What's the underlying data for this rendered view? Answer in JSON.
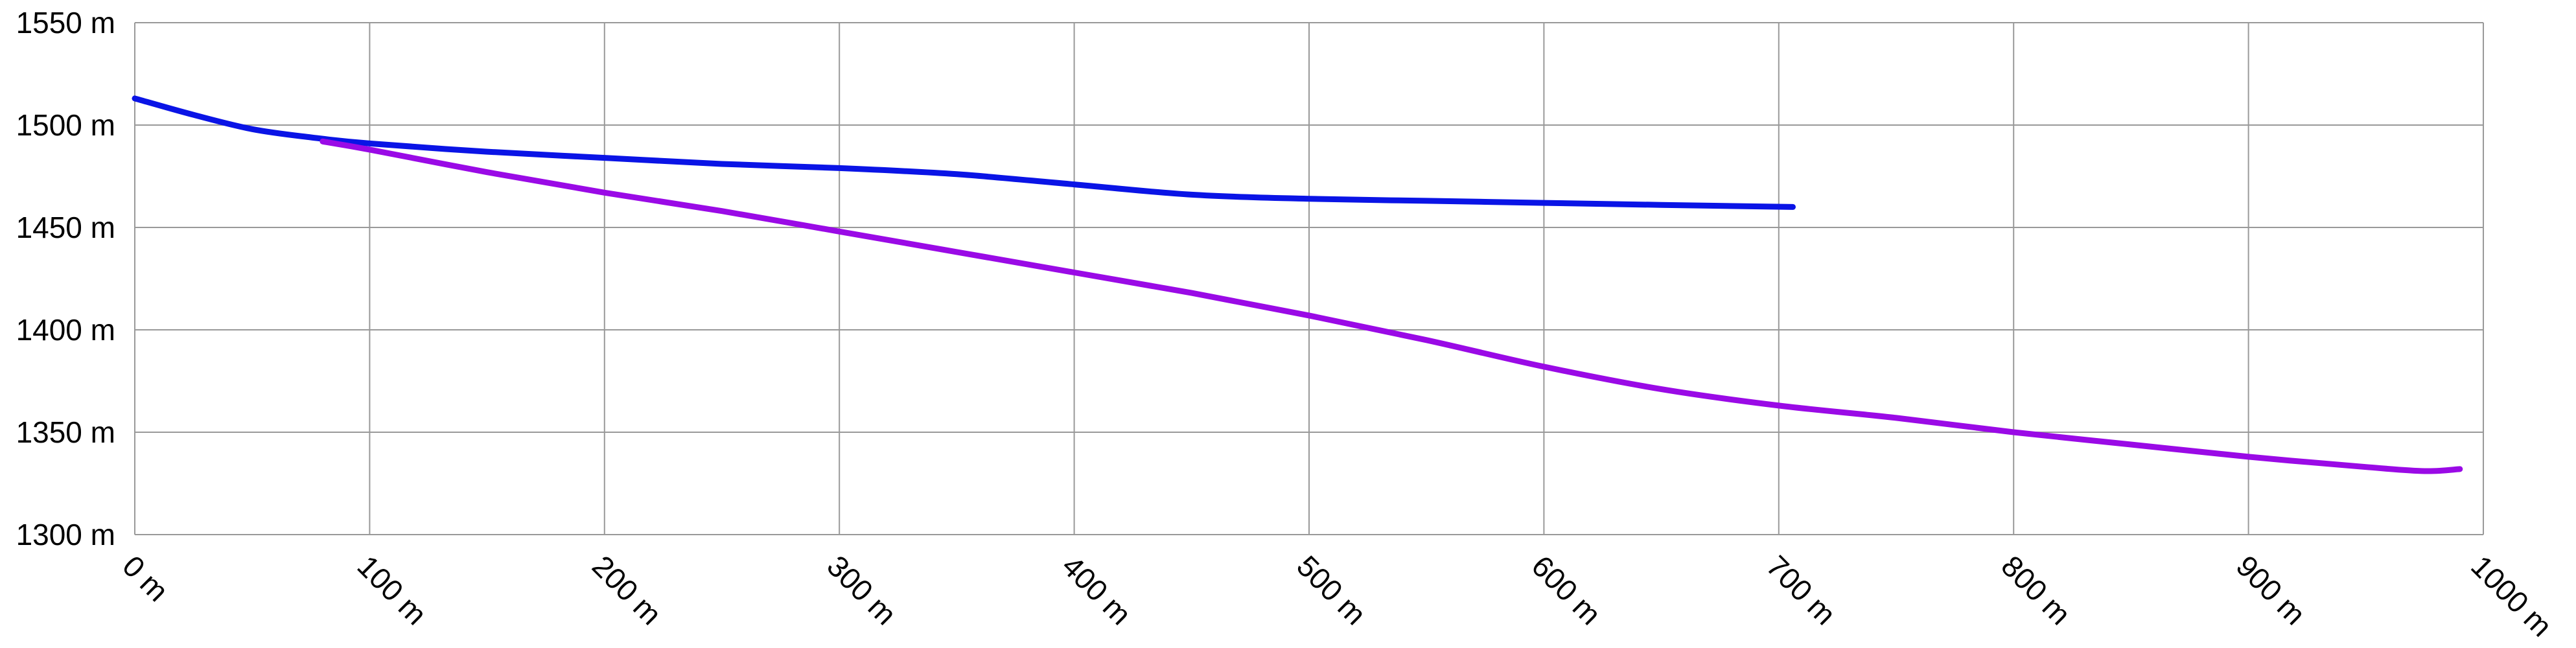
{
  "chart_data": {
    "type": "line",
    "title": "",
    "xlabel": "",
    "ylabel": "",
    "xlim": [
      0,
      1000
    ],
    "ylim": [
      1300,
      1550
    ],
    "grid": true,
    "legend": "none",
    "x_ticks": [
      0,
      100,
      200,
      300,
      400,
      500,
      600,
      700,
      800,
      900,
      1000
    ],
    "x_tick_labels": [
      "0 m",
      "100 m",
      "200 m",
      "300 m",
      "400 m",
      "500 m",
      "600 m",
      "700 m",
      "800 m",
      "900 m",
      "1000 m"
    ],
    "y_ticks": [
      1300,
      1350,
      1400,
      1450,
      1500,
      1550
    ],
    "y_tick_labels": [
      "1300 m",
      "1350 m",
      "1400 m",
      "1450 m",
      "1500 m",
      "1550 m"
    ],
    "series": [
      {
        "color": "#0a14e6",
        "points": [
          [
            0,
            1513
          ],
          [
            25,
            1505
          ],
          [
            50,
            1498
          ],
          [
            75,
            1494
          ],
          [
            100,
            1491
          ],
          [
            150,
            1487
          ],
          [
            200,
            1484
          ],
          [
            250,
            1481
          ],
          [
            300,
            1479
          ],
          [
            350,
            1476
          ],
          [
            400,
            1471
          ],
          [
            450,
            1466
          ],
          [
            500,
            1464
          ],
          [
            550,
            1463
          ],
          [
            600,
            1462
          ],
          [
            650,
            1461
          ],
          [
            706,
            1460
          ]
        ]
      },
      {
        "color": "#9a0ae6",
        "points": [
          [
            80,
            1492
          ],
          [
            100,
            1488
          ],
          [
            150,
            1477
          ],
          [
            200,
            1467
          ],
          [
            250,
            1458
          ],
          [
            300,
            1448
          ],
          [
            350,
            1438
          ],
          [
            400,
            1428
          ],
          [
            450,
            1418
          ],
          [
            500,
            1407
          ],
          [
            550,
            1395
          ],
          [
            600,
            1382
          ],
          [
            650,
            1371
          ],
          [
            700,
            1363
          ],
          [
            750,
            1357
          ],
          [
            800,
            1350
          ],
          [
            850,
            1344
          ],
          [
            900,
            1338
          ],
          [
            950,
            1333
          ],
          [
            975,
            1331
          ],
          [
            990,
            1332
          ]
        ]
      }
    ]
  }
}
